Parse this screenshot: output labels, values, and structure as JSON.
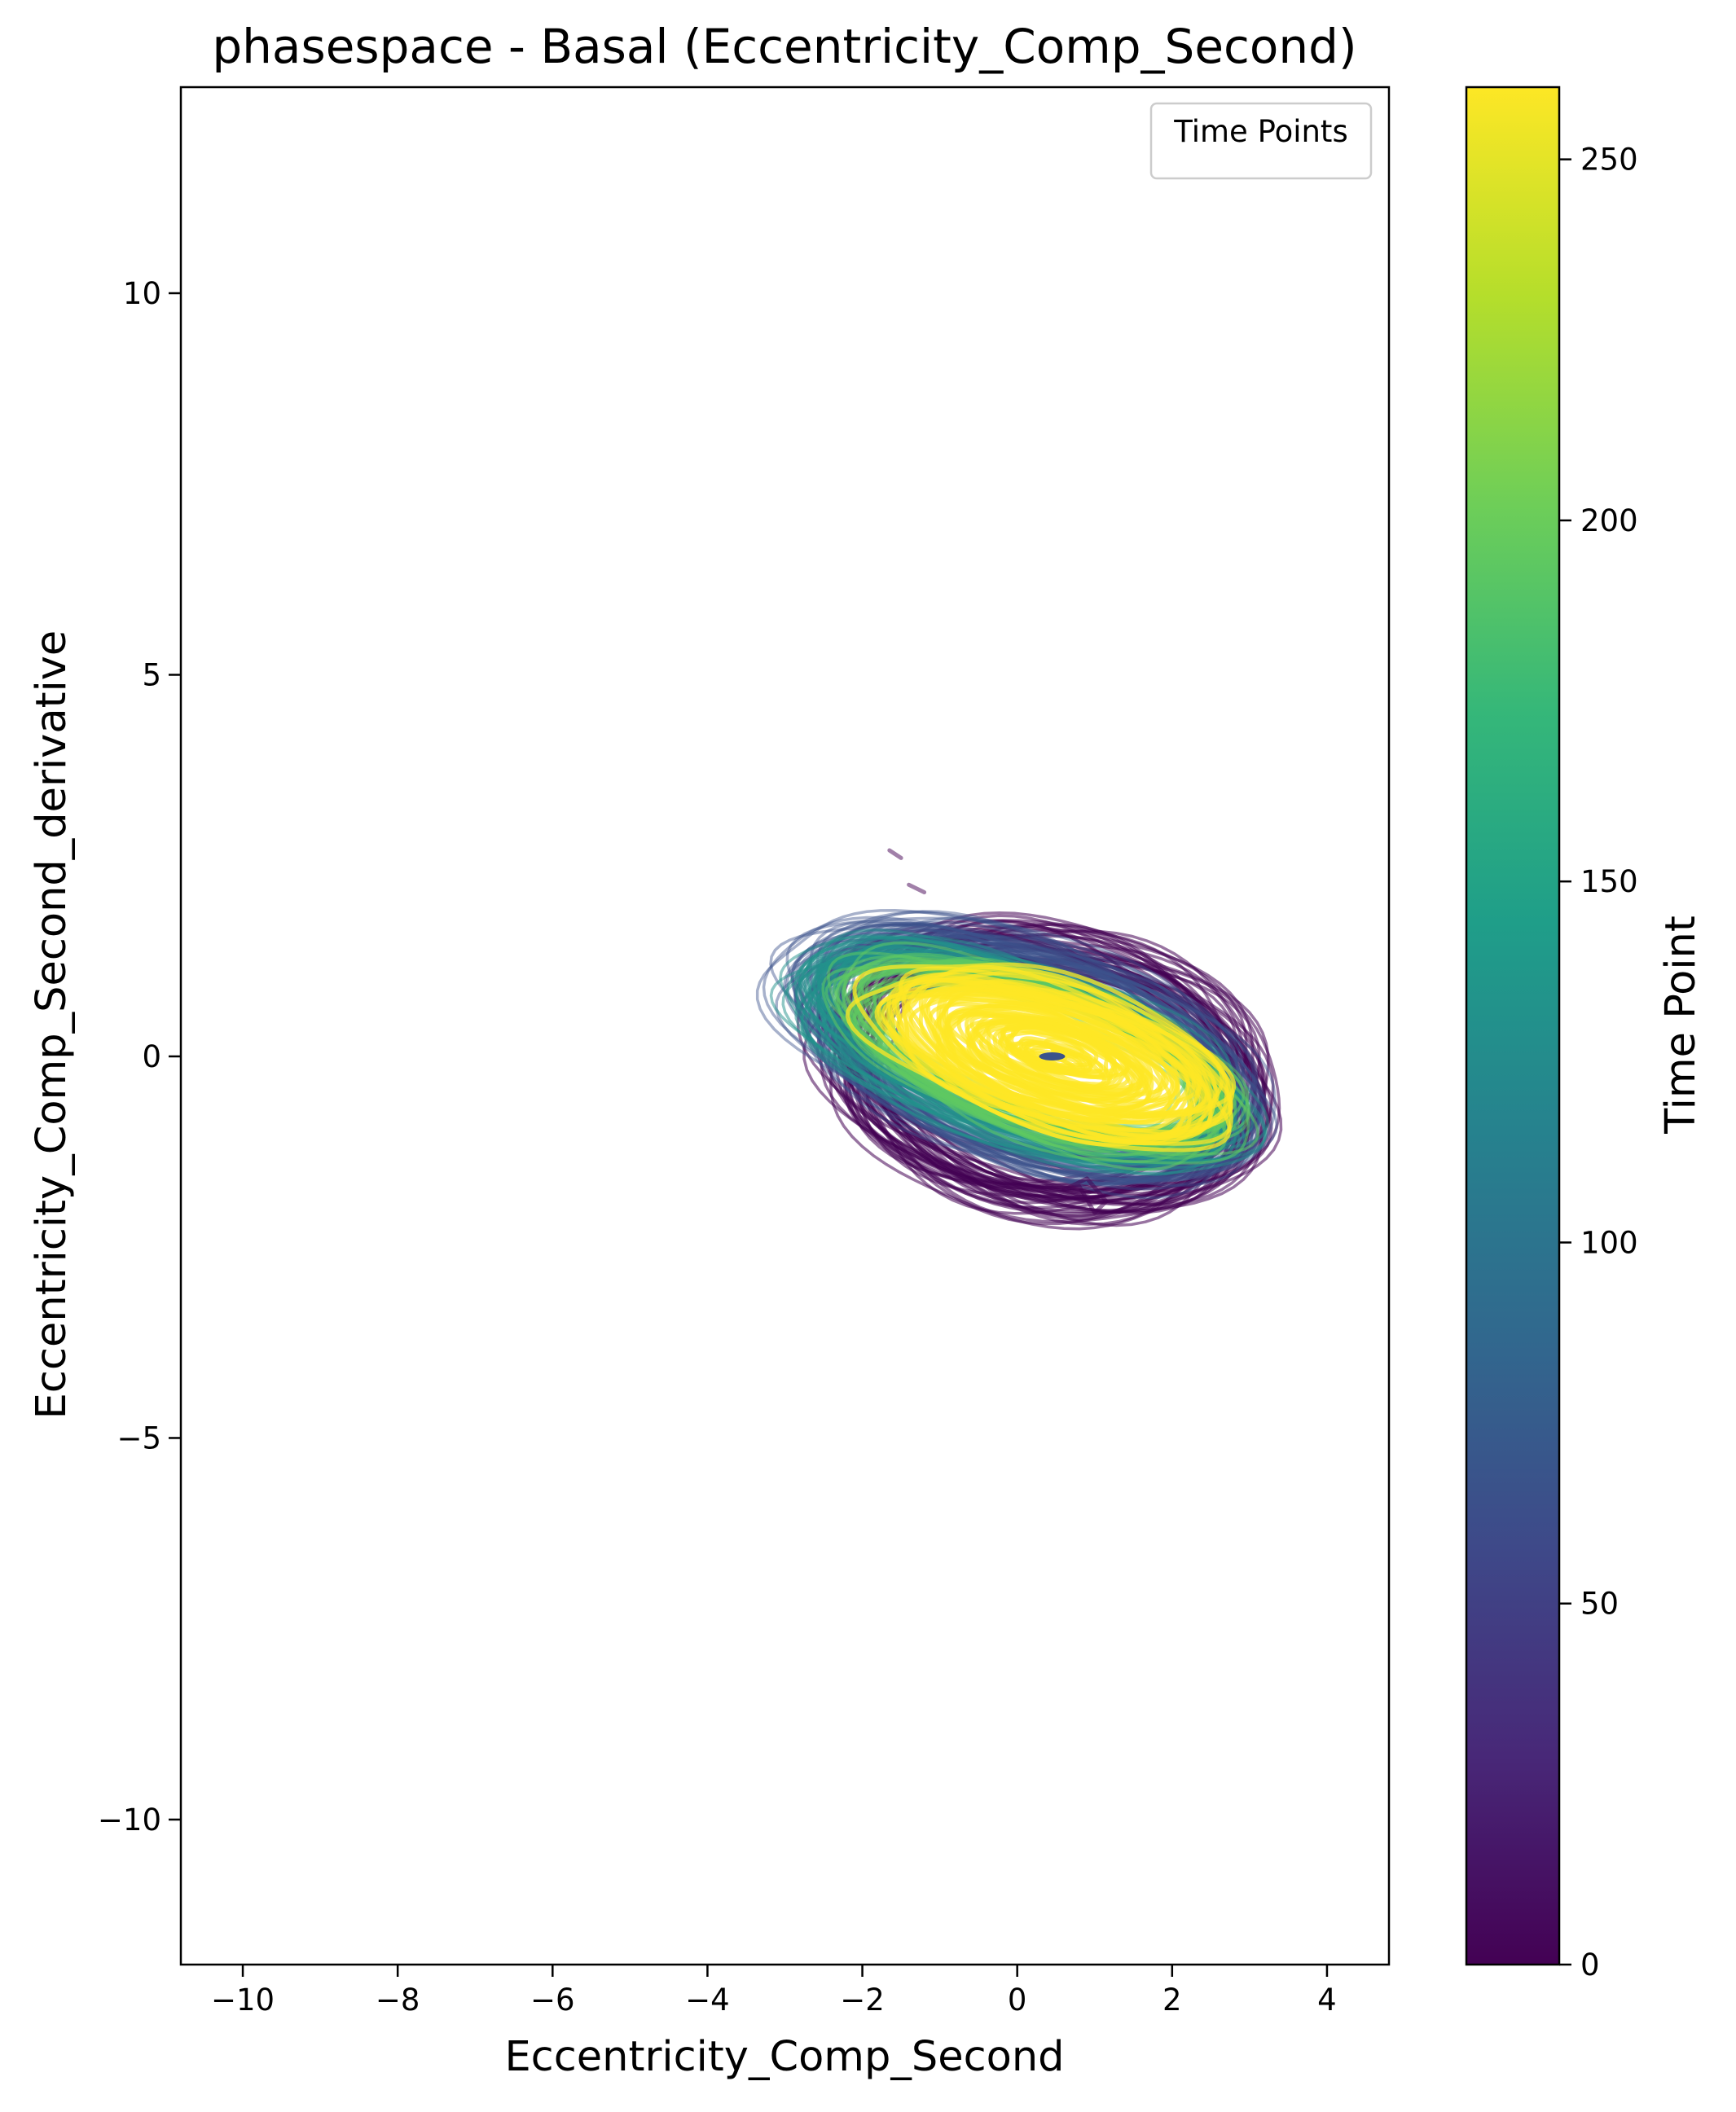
{
  "chart_data": {
    "type": "line",
    "title": "phasespace - Basal (Eccentricity_Comp_Second)",
    "xlabel": "Eccentricity_Comp_Second",
    "ylabel": "Eccentricity_Comp_Second_derivative",
    "xlim": [
      -10.8,
      4.8
    ],
    "ylim": [
      -11.9,
      12.7
    ],
    "x_ticks": [
      -10,
      -8,
      -6,
      -4,
      -2,
      0,
      2,
      4
    ],
    "x_tick_labels": [
      "−10",
      "−8",
      "−6",
      "−4",
      "−2",
      "0",
      "2",
      "4"
    ],
    "y_ticks": [
      -10,
      -5,
      0,
      5,
      10
    ],
    "y_tick_labels": [
      "−10",
      "−5",
      "0",
      "5",
      "10"
    ],
    "grid": false,
    "legend": {
      "title": "Time Points",
      "placement": "top-right",
      "entries": []
    },
    "colorbar": {
      "label": "Time Point",
      "colormap": "viridis",
      "range": [
        0,
        260
      ],
      "ticks": [
        0,
        50,
        100,
        150,
        200,
        250
      ],
      "tick_labels": [
        "0",
        "50",
        "100",
        "150",
        "200",
        "250"
      ],
      "colors": [
        "#440154",
        "#482878",
        "#3e4989",
        "#31688e",
        "#26828e",
        "#1f9e89",
        "#35b779",
        "#6ece58",
        "#b5de2b",
        "#fde725"
      ]
    },
    "series": [
      {
        "time_range": [
          0,
          40
        ],
        "color": "#440154",
        "alpha": 0.55,
        "center": [
          0.4,
          -0.2
        ],
        "radius_x": [
          2.3,
          2.9
        ],
        "radius_y": [
          1.4,
          1.9
        ],
        "tilt": [
          -0.2,
          -0.05
        ]
      },
      {
        "time_range": [
          40,
          100
        ],
        "color": "#3b528b",
        "alpha": 0.45,
        "center": [
          0.1,
          0.05
        ],
        "radius_x": [
          2.5,
          3.1
        ],
        "radius_y": [
          1.2,
          1.5
        ],
        "tilt": [
          -0.3,
          -0.25
        ]
      },
      {
        "time_range": [
          100,
          170
        ],
        "color": "#21918c",
        "alpha": 0.5,
        "center": [
          0.05,
          0.05
        ],
        "radius_x": [
          2.4,
          2.9
        ],
        "radius_y": [
          0.9,
          1.2
        ],
        "tilt": [
          -0.33,
          -0.27
        ]
      },
      {
        "time_range": [
          170,
          215
        ],
        "color": "#5ec962",
        "alpha": 0.55,
        "center": [
          0.3,
          0.0
        ],
        "radius_x": [
          2.0,
          2.6
        ],
        "radius_y": [
          0.8,
          1.05
        ],
        "tilt": [
          -0.32,
          -0.26
        ]
      },
      {
        "time_range": [
          215,
          260
        ],
        "color": "#fde725",
        "alpha": 0.75,
        "center": [
          0.5,
          0.0
        ],
        "radius_x": [
          0.15,
          2.35
        ],
        "radius_y": [
          0.03,
          0.95
        ],
        "tilt": [
          -0.3,
          -0.25
        ]
      }
    ],
    "outliers": [
      {
        "color": "#440154",
        "alpha": 0.5,
        "x": [
          -1.65,
          -1.5
        ],
        "y": [
          2.7,
          2.6
        ]
      },
      {
        "color": "#440154",
        "alpha": 0.5,
        "x": [
          -1.4,
          -1.2
        ],
        "y": [
          2.25,
          2.15
        ]
      },
      {
        "color": "#440154",
        "alpha": 0.55,
        "x": [
          0.8,
          1.0,
          1.15,
          0.9,
          0.6
        ],
        "y": [
          -1.7,
          -2.05,
          -1.9,
          -1.6,
          -1.75
        ]
      }
    ],
    "center_point": {
      "x": 0.45,
      "y": 0.0,
      "color": "#3b528b"
    }
  }
}
